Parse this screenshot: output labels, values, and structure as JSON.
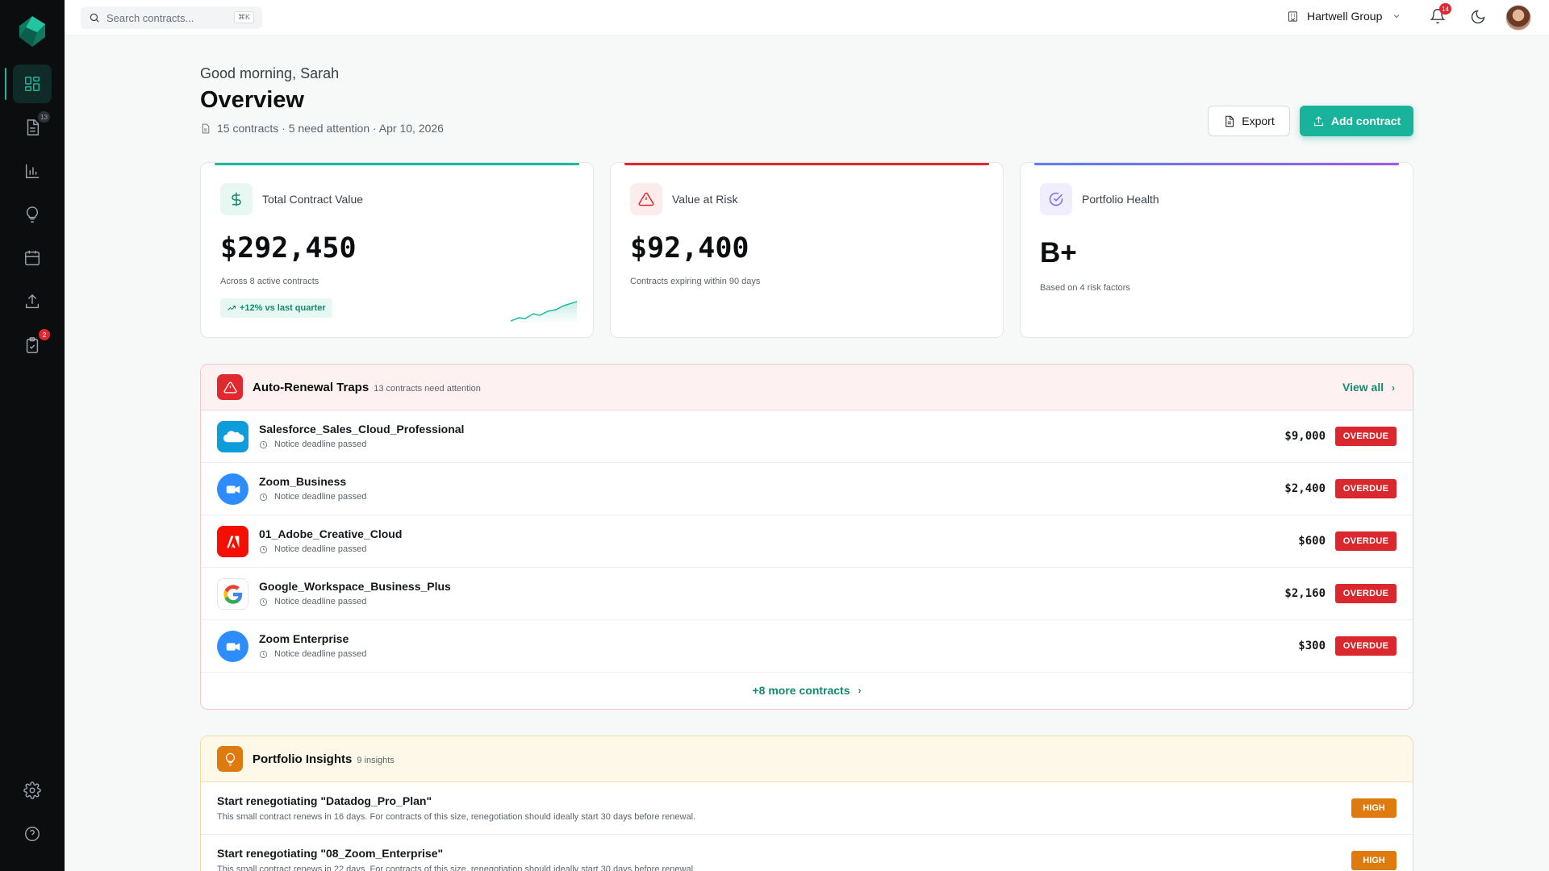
{
  "sidebar": {
    "items": [
      {
        "icon": "dashboard-icon",
        "active": true
      },
      {
        "icon": "contracts-icon",
        "badge": "13"
      },
      {
        "icon": "analytics-icon"
      },
      {
        "icon": "lightbulb-icon"
      },
      {
        "icon": "calendar-icon"
      },
      {
        "icon": "upload-icon"
      },
      {
        "icon": "clipboard-check-icon",
        "badge": "2"
      }
    ],
    "bottom": [
      {
        "icon": "settings-icon"
      },
      {
        "icon": "help-icon"
      }
    ]
  },
  "topbar": {
    "search_placeholder": "Search contracts...",
    "search_shortcut": "⌘K",
    "org_name": "Hartwell Group",
    "notifications_count": "14"
  },
  "header": {
    "greeting": "Good morning, Sarah",
    "title": "Overview",
    "meta": "15 contracts · 5 need attention · Apr 10, 2026",
    "export_label": "Export",
    "add_label": "Add contract"
  },
  "stats": {
    "total": {
      "label": "Total Contract Value",
      "value": "$292,450",
      "sub": "Across 8 active contracts",
      "trend": "+12% vs last quarter",
      "accent": "#1fb89d"
    },
    "risk": {
      "label": "Value at Risk",
      "value": "$92,400",
      "sub": "Contracts expiring within 90 days",
      "accent": "#e0282e"
    },
    "health": {
      "label": "Portfolio Health",
      "value": "B+",
      "sub": "Based on 4 risk factors",
      "accent": "#7b6cf0"
    }
  },
  "traps": {
    "title": "Auto-Renewal Traps",
    "count": "13 contracts need attention",
    "view_all": "View all",
    "rows": [
      {
        "name": "Salesforce_Sales_Cloud_Professional",
        "note": "Notice deadline passed",
        "amount": "$9,000",
        "status": "OVERDUE",
        "logo": "salesforce-logo"
      },
      {
        "name": "Zoom_Business",
        "note": "Notice deadline passed",
        "amount": "$2,400",
        "status": "OVERDUE",
        "logo": "zoom-logo"
      },
      {
        "name": "01_Adobe_Creative_Cloud",
        "note": "Notice deadline passed",
        "amount": "$600",
        "status": "OVERDUE",
        "logo": "adobe-logo"
      },
      {
        "name": "Google_Workspace_Business_Plus",
        "note": "Notice deadline passed",
        "amount": "$2,160",
        "status": "OVERDUE",
        "logo": "google-logo"
      },
      {
        "name": "Zoom Enterprise",
        "note": "Notice deadline passed",
        "amount": "$300",
        "status": "OVERDUE",
        "logo": "zoom-logo"
      }
    ],
    "more": "+8 more contracts"
  },
  "insights": {
    "title": "Portfolio Insights",
    "count": "9 insights",
    "rows": [
      {
        "title": "Start renegotiating \"Datadog_Pro_Plan\"",
        "desc": "This small contract renews in 16 days. For contracts of this size, renegotiation should ideally start 30 days before renewal.",
        "priority": "HIGH"
      },
      {
        "title": "Start renegotiating \"08_Zoom_Enterprise\"",
        "desc": "This small contract renews in 22 days. For contracts of this size, renegotiation should ideally start 30 days before renewal.",
        "priority": "HIGH"
      }
    ]
  }
}
